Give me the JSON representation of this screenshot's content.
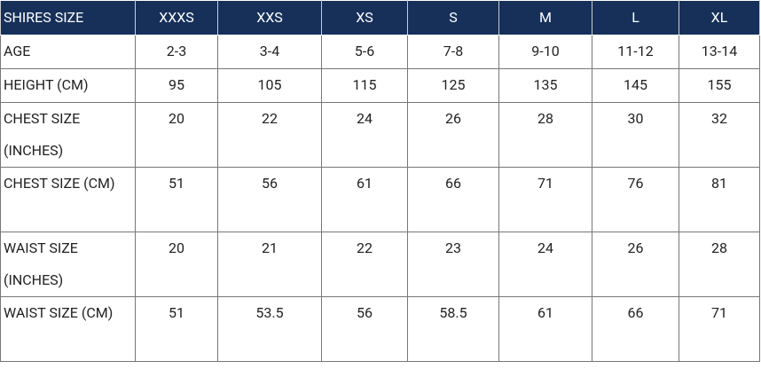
{
  "table": {
    "header": [
      "SHIRES SIZE",
      "XXXS",
      "XXS",
      "XS",
      "S",
      "M",
      "L",
      "XL"
    ],
    "rows": [
      [
        "AGE",
        "2-3",
        "3-4",
        "5-6",
        "7-8",
        "9-10",
        "11-12",
        "13-14"
      ],
      [
        "HEIGHT (CM)",
        "95",
        "105",
        "115",
        "125",
        "135",
        "145",
        "155"
      ],
      [
        "CHEST SIZE (INCHES)",
        "20",
        "22",
        "24",
        "26",
        "28",
        "30",
        "32"
      ],
      [
        "CHEST SIZE (CM)",
        "51",
        "56",
        "61",
        "66",
        "71",
        "76",
        "81"
      ],
      [
        "WAIST SIZE (INCHES)",
        "20",
        "21",
        "22",
        "23",
        "24",
        "26",
        "28"
      ],
      [
        "WAIST SIZE (CM)",
        "51",
        "53.5",
        "56",
        "58.5",
        "61",
        "66",
        "71"
      ]
    ]
  }
}
